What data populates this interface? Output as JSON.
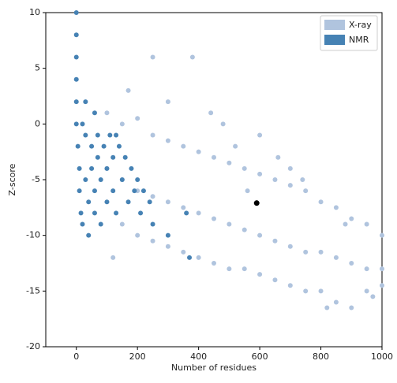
{
  "chart_data": {
    "type": "scatter",
    "xlabel": "Number of residues",
    "ylabel": "Z-score",
    "xlim": [
      -100,
      1000
    ],
    "xticks": [
      0,
      200,
      400,
      600,
      800,
      1000
    ],
    "ylim": [
      -20,
      10
    ],
    "yticks": [
      -20,
      -15,
      -10,
      -5,
      0,
      5,
      10
    ],
    "grid": false,
    "legend": "upper right",
    "series": [
      {
        "name": "X-ray",
        "color": "#b0c4de",
        "x": [
          100,
          150,
          200,
          250,
          300,
          350,
          400,
          450,
          500,
          550,
          600,
          650,
          700,
          750,
          800,
          850,
          900,
          950,
          1000,
          100,
          150,
          200,
          250,
          300,
          350,
          400,
          450,
          500,
          550,
          600,
          650,
          700,
          750,
          800,
          850,
          900,
          950,
          1000,
          150,
          200,
          250,
          300,
          350,
          400,
          450,
          500,
          550,
          600,
          650,
          700,
          750,
          800,
          850,
          900,
          950,
          1000,
          250,
          380,
          440,
          480,
          520,
          600,
          660,
          700,
          120,
          170,
          300,
          560,
          740,
          880,
          820,
          970
        ],
        "values": [
          1,
          0,
          0.5,
          -1,
          -1.5,
          -2,
          -2.5,
          -3,
          -3.5,
          -4,
          -4.5,
          -5,
          -5.5,
          -6,
          -7,
          -7.5,
          -8.5,
          -9,
          -10,
          -4,
          -5,
          -6,
          -6.5,
          -7,
          -7.5,
          -8,
          -8.5,
          -9,
          -9.5,
          -10,
          -10.5,
          -11,
          -11.5,
          -11.5,
          -12,
          -12.5,
          -13,
          -13,
          -9,
          -10,
          -10.5,
          -11,
          -11.5,
          -12,
          -12.5,
          -13,
          -13,
          -13.5,
          -14,
          -14.5,
          -15,
          -15,
          -16,
          -16.5,
          -15,
          -14.5,
          6,
          6,
          1,
          0,
          -2,
          -1,
          -3,
          -4,
          -12,
          3,
          2,
          -6,
          -5,
          -9,
          -16.5,
          -15.5
        ]
      },
      {
        "name": "NMR",
        "color": "#4682b4",
        "x": [
          0,
          0,
          0,
          0,
          0,
          0,
          5,
          10,
          10,
          15,
          20,
          20,
          30,
          30,
          40,
          40,
          50,
          50,
          60,
          60,
          70,
          70,
          80,
          80,
          90,
          100,
          100,
          110,
          120,
          120,
          130,
          140,
          150,
          160,
          170,
          180,
          190,
          200,
          210,
          220,
          240,
          250,
          300,
          360,
          370,
          130,
          60,
          30
        ],
        "values": [
          10,
          8,
          6,
          4,
          2,
          0,
          -2,
          -4,
          -6,
          -8,
          -9,
          0,
          -1,
          -5,
          -7,
          -10,
          -2,
          -4,
          -6,
          -8,
          -1,
          -3,
          -5,
          -9,
          -2,
          -4,
          -7,
          -1,
          -3,
          -6,
          -8,
          -2,
          -5,
          -3,
          -7,
          -4,
          -6,
          -5,
          -8,
          -6,
          -7,
          -9,
          -10,
          -8,
          -12,
          -1,
          1,
          2
        ]
      },
      {
        "color": "#000000",
        "x": [
          590
        ],
        "values": [
          -7.1
        ]
      }
    ]
  }
}
